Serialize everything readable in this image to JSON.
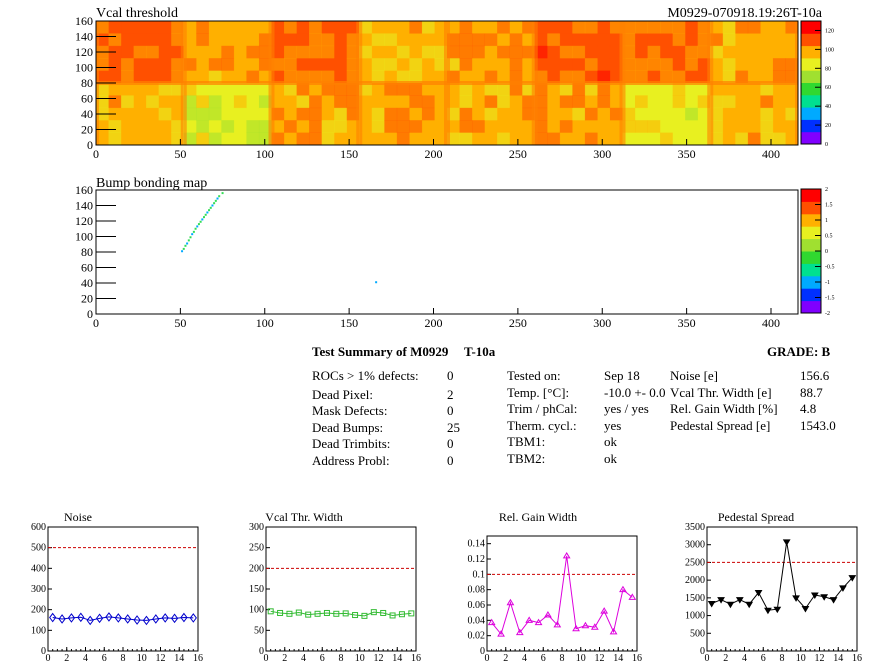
{
  "colors": {
    "heat": [
      "#8000ff",
      "#0030ff",
      "#00aaff",
      "#00e090",
      "#30d830",
      "#a0e030",
      "#e8f020",
      "#ffb000",
      "#ff5000",
      "#ff0000"
    ],
    "noise": "#0000cc",
    "vcal": "#33bb33",
    "gain": "#dd00dd",
    "pedestal": "#000000",
    "limit": "#cc0000"
  },
  "header": {
    "module_label": "M0929-070918.19:26T-10a"
  },
  "summary": {
    "title": "Test Summary of M0929",
    "temp_label": "T-10a",
    "grade": "GRADE:  B",
    "rows_left": [
      {
        "label": "ROCs > 1% defects:",
        "value": "0"
      },
      {
        "label": "Dead Pixel:",
        "value": "2"
      },
      {
        "label": "Mask Defects:",
        "value": "0"
      },
      {
        "label": "Dead Bumps:",
        "value": "25"
      },
      {
        "label": "Dead Trimbits:",
        "value": "0"
      },
      {
        "label": "Address Probl:",
        "value": "0"
      }
    ],
    "rows_mid": [
      {
        "label": "Tested on:",
        "value": "Sep 18"
      },
      {
        "label": "Temp. [°C]:",
        "value": "-10.0 +- 0.0"
      },
      {
        "label": "Trim / phCal:",
        "value": "yes / yes"
      },
      {
        "label": "Therm. cycl.:",
        "value": "yes"
      },
      {
        "label": "TBM1:",
        "value": "ok"
      },
      {
        "label": "TBM2:",
        "value": "ok"
      }
    ],
    "rows_right": [
      {
        "label": "Noise [e]",
        "value": "156.6"
      },
      {
        "label": "Vcal Thr. Width [e]",
        "value": "88.7"
      },
      {
        "label": "Rel. Gain Width [%]",
        "value": "4.8"
      },
      {
        "label": "Pedestal Spread [e]",
        "value": "1543.0"
      }
    ]
  },
  "chart_data": [
    {
      "type": "heatmap",
      "title": "Vcal threshold",
      "xlim": [
        0,
        416
      ],
      "ylim": [
        0,
        160
      ],
      "xticks": [
        0,
        50,
        100,
        150,
        200,
        250,
        300,
        350,
        400
      ],
      "yticks": [
        0,
        20,
        40,
        60,
        80,
        100,
        120,
        140,
        160
      ],
      "zlim": [
        0,
        130
      ],
      "zticks": [
        0,
        20,
        40,
        60,
        80,
        100,
        120
      ],
      "description_grid": "8x2 readout chips, thresholds mostly 100-125 with greener chips near 80-95",
      "chip_levels": [
        [
          0.82,
          0.78,
          0.8,
          0.72,
          0.78,
          0.82,
          0.8,
          0.74
        ],
        [
          0.72,
          0.64,
          0.76,
          0.78,
          0.74,
          0.76,
          0.68,
          0.72
        ]
      ]
    },
    {
      "type": "heatmap",
      "title": "Bump bonding map",
      "xlim": [
        0,
        416
      ],
      "ylim": [
        0,
        160
      ],
      "xticks": [
        0,
        50,
        100,
        150,
        200,
        250,
        300,
        350,
        400
      ],
      "yticks": [
        0,
        20,
        40,
        60,
        80,
        100,
        120,
        140,
        160
      ],
      "zlim": [
        -2,
        2
      ],
      "zticks": [
        -2,
        -1.5,
        -1,
        -0.5,
        0,
        0.5,
        1,
        1.5,
        2
      ],
      "points": [
        {
          "x": 51,
          "y": 81
        },
        {
          "x": 52,
          "y": 84
        },
        {
          "x": 53,
          "y": 88
        },
        {
          "x": 54,
          "y": 91
        },
        {
          "x": 55,
          "y": 95
        },
        {
          "x": 56,
          "y": 99
        },
        {
          "x": 57,
          "y": 103
        },
        {
          "x": 58,
          "y": 106
        },
        {
          "x": 59,
          "y": 110
        },
        {
          "x": 60,
          "y": 113
        },
        {
          "x": 61,
          "y": 116
        },
        {
          "x": 62,
          "y": 119
        },
        {
          "x": 63,
          "y": 122
        },
        {
          "x": 64,
          "y": 125
        },
        {
          "x": 65,
          "y": 128
        },
        {
          "x": 66,
          "y": 131
        },
        {
          "x": 67,
          "y": 134
        },
        {
          "x": 68,
          "y": 137
        },
        {
          "x": 69,
          "y": 140
        },
        {
          "x": 70,
          "y": 143
        },
        {
          "x": 71,
          "y": 146
        },
        {
          "x": 72,
          "y": 149
        },
        {
          "x": 73,
          "y": 152
        },
        {
          "x": 75,
          "y": 156
        },
        {
          "x": 166,
          "y": 41
        }
      ]
    },
    {
      "type": "line",
      "title": "Noise",
      "x": [
        0,
        1,
        2,
        3,
        4,
        5,
        6,
        7,
        8,
        9,
        10,
        11,
        12,
        13,
        14,
        15
      ],
      "values": [
        162,
        155,
        160,
        163,
        148,
        158,
        165,
        160,
        155,
        150,
        148,
        155,
        160,
        158,
        162,
        160
      ],
      "xlim": [
        0,
        16
      ],
      "ylim": [
        0,
        600
      ],
      "xticks": [
        0,
        2,
        4,
        6,
        8,
        10,
        12,
        14,
        16
      ],
      "yticks": [
        0,
        100,
        200,
        300,
        400,
        500,
        600
      ],
      "limit": 500,
      "marker": "diamond"
    },
    {
      "type": "line",
      "title": "Vcal Thr. Width",
      "x": [
        0,
        1,
        2,
        3,
        4,
        5,
        6,
        7,
        8,
        9,
        10,
        11,
        12,
        13,
        14,
        15
      ],
      "values": [
        96,
        92,
        90,
        93,
        88,
        90,
        92,
        90,
        91,
        87,
        85,
        94,
        92,
        86,
        89,
        91
      ],
      "xlim": [
        0,
        16
      ],
      "ylim": [
        0,
        300
      ],
      "xticks": [
        0,
        2,
        4,
        6,
        8,
        10,
        12,
        14,
        16
      ],
      "yticks": [
        0,
        50,
        100,
        150,
        200,
        250,
        300
      ],
      "limit": 200,
      "marker": "square"
    },
    {
      "type": "line",
      "title": "Rel. Gain Width",
      "x": [
        0,
        1,
        2,
        3,
        4,
        5,
        6,
        7,
        8,
        9,
        10,
        11,
        12,
        13,
        14,
        15
      ],
      "values": [
        0.037,
        0.022,
        0.063,
        0.024,
        0.04,
        0.037,
        0.047,
        0.034,
        0.124,
        0.029,
        0.033,
        0.031,
        0.052,
        0.025,
        0.08,
        0.07
      ],
      "xlim": [
        0,
        16
      ],
      "ylim": [
        0,
        0.15
      ],
      "xticks": [
        0,
        2,
        4,
        6,
        8,
        10,
        12,
        14,
        16
      ],
      "yticks": [
        0,
        0.02,
        0.04,
        0.06,
        0.08,
        0.1,
        0.12,
        0.14
      ],
      "limit": 0.1,
      "marker": "triangle"
    },
    {
      "type": "line",
      "title": "Pedestal Spread",
      "x": [
        0,
        1,
        2,
        3,
        4,
        5,
        6,
        7,
        8,
        9,
        10,
        11,
        12,
        13,
        14,
        15
      ],
      "values": [
        1340,
        1450,
        1320,
        1450,
        1320,
        1650,
        1150,
        1180,
        3080,
        1500,
        1200,
        1580,
        1530,
        1450,
        1780,
        2070
      ],
      "xlim": [
        0,
        16
      ],
      "ylim": [
        0,
        3500
      ],
      "xticks": [
        0,
        2,
        4,
        6,
        8,
        10,
        12,
        14,
        16
      ],
      "yticks": [
        0,
        500,
        1000,
        1500,
        2000,
        2500,
        3000,
        3500
      ],
      "limit": 2500,
      "marker": "triangle-down"
    }
  ]
}
